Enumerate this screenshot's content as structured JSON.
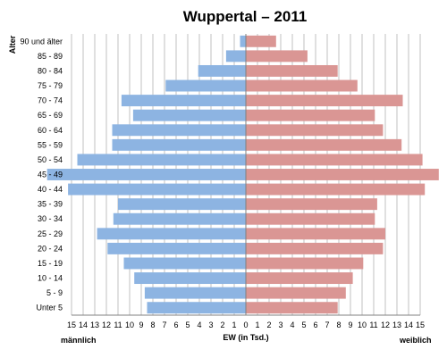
{
  "chart_data": {
    "type": "bar",
    "orientation": "horizontal-population-pyramid",
    "title": "Wuppertal – 2011",
    "ylabel": "Alter",
    "xlabel": "EW (in Tsd.)",
    "left_label": "männlich",
    "right_label": "weiblich",
    "xlim": [
      -15,
      15
    ],
    "x_ticks": [
      "15",
      "14",
      "13",
      "12",
      "11",
      "10",
      "9",
      "8",
      "7",
      "6",
      "5",
      "4",
      "3",
      "2",
      "1",
      "0",
      "1",
      "2",
      "3",
      "4",
      "5",
      "6",
      "7",
      "8",
      "9",
      "10",
      "11",
      "12",
      "13",
      "14",
      "15"
    ],
    "categories": [
      "90 und älter",
      "85 - 89",
      "80 - 84",
      "75 - 79",
      "70 - 74",
      "65 - 69",
      "60 - 64",
      "55 - 59",
      "50 - 54",
      "45 - 49",
      "40 - 44",
      "35 - 39",
      "30 - 34",
      "25 - 29",
      "20 - 24",
      "15 - 19",
      "10 - 14",
      "5 - 9",
      "Unter 5"
    ],
    "series": [
      {
        "name": "männlich",
        "color": "#8db4e2",
        "values": [
          0.5,
          1.7,
          4.1,
          6.9,
          10.7,
          9.7,
          11.5,
          11.5,
          14.5,
          17.1,
          15.3,
          11.0,
          11.4,
          12.8,
          11.9,
          10.5,
          9.6,
          8.7,
          8.5
        ]
      },
      {
        "name": "weiblich",
        "color": "#da9694",
        "values": [
          2.6,
          5.3,
          7.9,
          9.6,
          13.5,
          11.1,
          11.8,
          13.4,
          15.2,
          16.6,
          15.4,
          11.3,
          11.1,
          12.0,
          11.8,
          10.1,
          9.2,
          8.6,
          7.9
        ]
      }
    ],
    "grid": true,
    "grid_color": "#c0c0c0"
  }
}
